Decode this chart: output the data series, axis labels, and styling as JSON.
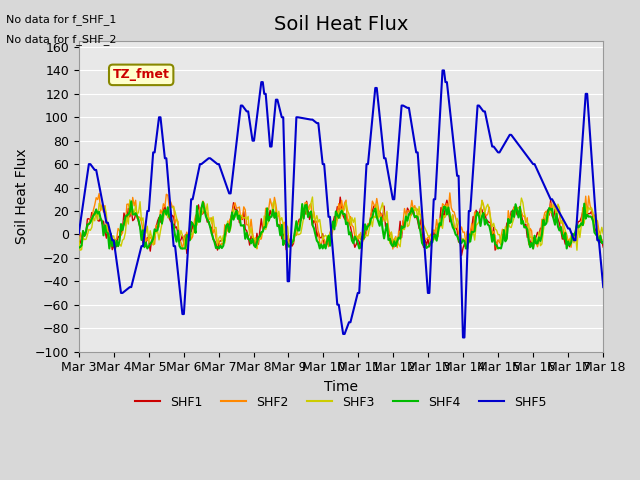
{
  "title": "Soil Heat Flux",
  "ylabel": "Soil Heat Flux",
  "xlabel": "Time",
  "ylim": [
    -100,
    165
  ],
  "yticks": [
    -100,
    -80,
    -60,
    -40,
    -20,
    0,
    20,
    40,
    60,
    80,
    100,
    120,
    140,
    160
  ],
  "bg_color": "#e8e8e8",
  "plot_bg_color": "#e8e8e8",
  "no_data_text1": "No data for f_SHF_1",
  "no_data_text2": "No data for f_SHF_2",
  "tz_label": "TZ_fmet",
  "legend_entries": [
    "SHF1",
    "SHF2",
    "SHF3",
    "SHF4",
    "SHF5"
  ],
  "legend_colors": [
    "#cc0000",
    "#ff8800",
    "#cccc00",
    "#00bb00",
    "#0000cc"
  ],
  "title_fontsize": 14,
  "label_fontsize": 10,
  "tick_fontsize": 9,
  "x_tick_labels": [
    "Mar 3",
    "Mar 4",
    "Mar 5",
    "Mar 6",
    "Mar 7",
    "Mar 8",
    "Mar 9",
    "Mar 10",
    "Mar 11",
    "Mar 12",
    "Mar 13",
    "Mar 14",
    "Mar 15",
    "Mar 16",
    "Mar 17",
    "Mar 18"
  ],
  "shf1_color": "#cc0000",
  "shf2_color": "#ff8800",
  "shf3_color": "#cccc00",
  "shf4_color": "#00bb00",
  "shf5_color": "#0000cc"
}
